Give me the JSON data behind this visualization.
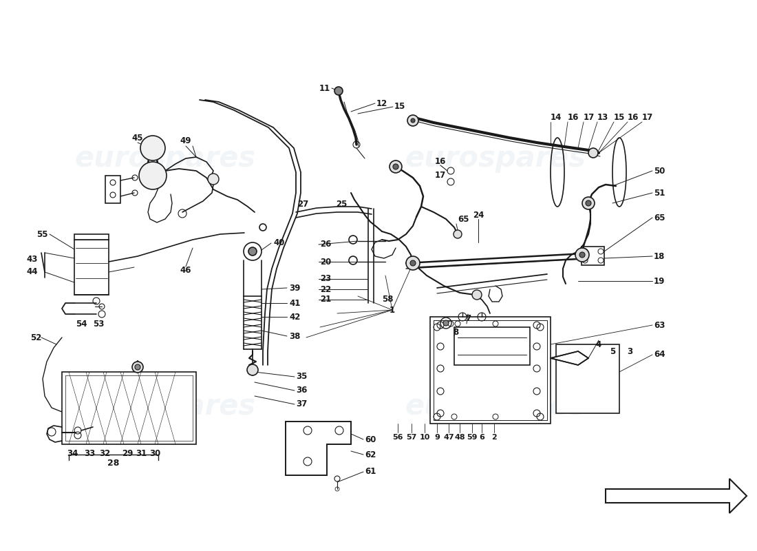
{
  "background_color": "#ffffff",
  "line_color": "#1a1a1a",
  "text_color": "#1a1a1a",
  "watermark_color": "#c8d4dc",
  "watermark_text": "eurospares",
  "fig_width": 11.0,
  "fig_height": 8.0,
  "dpi": 100,
  "label_fontsize": 8.5,
  "watermark_fontsize": 30,
  "watermark_alpha": 0.22,
  "lw_main": 1.2,
  "lw_thick": 2.0,
  "lw_thin": 0.7
}
